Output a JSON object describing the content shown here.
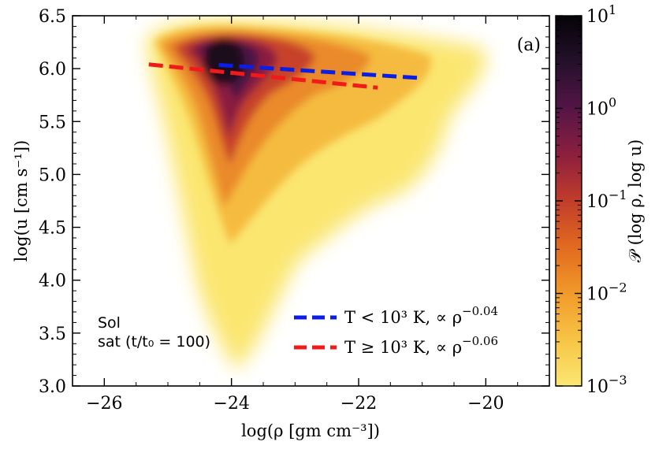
{
  "chart_data": {
    "type": "heatmap",
    "panel_label": "(a)",
    "xlabel": "log(ρ [gm cm⁻³])",
    "ylabel": "log(u [cm s⁻¹])",
    "xlim": [
      -26.5,
      -19
    ],
    "ylim": [
      3.0,
      6.5
    ],
    "x_ticks": [
      -26,
      -24,
      -22,
      -20
    ],
    "x_tick_labels": [
      "−26",
      "−24",
      "−22",
      "−20"
    ],
    "y_ticks": [
      3.0,
      3.5,
      4.0,
      4.5,
      5.0,
      5.5,
      6.0,
      6.5
    ],
    "y_tick_labels": [
      "3.0",
      "3.5",
      "4.0",
      "4.5",
      "5.0",
      "5.5",
      "6.0",
      "6.5"
    ],
    "annotation_lines": [
      "Sol",
      "sat (t/t₀ = 100)"
    ],
    "colorbar": {
      "label": "𝒫 (log ρ, log u)",
      "scale": "log",
      "range": [
        0.001,
        10
      ],
      "tick_exponents": [
        -3,
        -2,
        -1,
        0,
        1
      ],
      "colormap": [
        "#fbe772",
        "#f7c445",
        "#f19a2a",
        "#e26a1f",
        "#c13d2a",
        "#8c1f3e",
        "#541546",
        "#25102b",
        "#050308"
      ]
    },
    "density_peak": {
      "x": -24.2,
      "y": 6.0
    },
    "series": [
      {
        "name": "T < 10³ K,  ∝ ρ^−0.04",
        "legend_main": "T < 10³ K,  ∝ ρ",
        "legend_exp": "−0.04",
        "color": "#0a1ee6",
        "style": "dashed",
        "x": [
          -24.2,
          -21.0
        ],
        "y": [
          6.035,
          5.91
        ]
      },
      {
        "name": "T ≥ 10³ K,  ∝ ρ^−0.06",
        "legend_main": "T ≥ 10³ K,  ∝ ρ",
        "legend_exp": "−0.06",
        "color": "#f01a1a",
        "style": "dashed",
        "x": [
          -25.3,
          -21.7
        ],
        "y": [
          6.04,
          5.82
        ]
      }
    ],
    "legend_position": "lower-right"
  }
}
